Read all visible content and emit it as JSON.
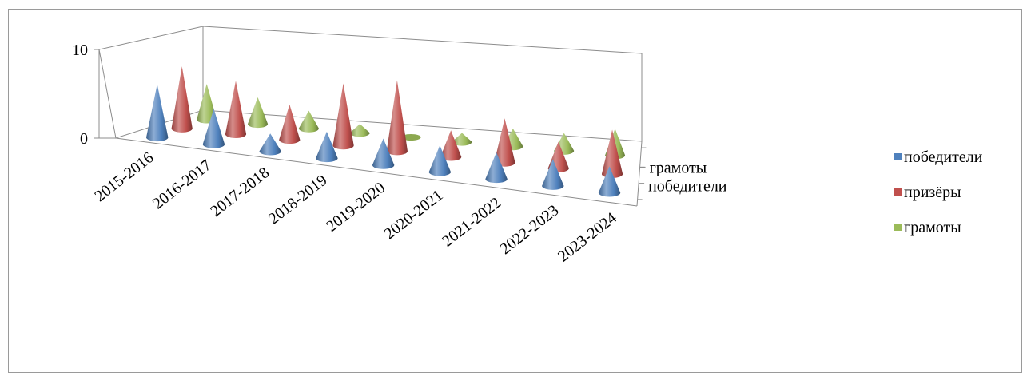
{
  "chart_data": {
    "type": "bar",
    "shape": "cone-3d",
    "categories": [
      "2015-2016",
      "2016-2017",
      "2017-2018",
      "2018-2019",
      "2019-2020",
      "2020-2021",
      "2021-2022",
      "2022-2023",
      "2023-2024"
    ],
    "series": [
      {
        "name": "победители",
        "values": [
          6,
          4,
          2,
          3,
          3,
          3,
          3,
          3,
          3
        ],
        "color": "#4f81bd"
      },
      {
        "name": "призёры",
        "values": [
          7,
          6,
          4,
          7,
          8,
          3,
          5,
          3,
          5
        ],
        "color": "#c0504d"
      },
      {
        "name": "грамоты",
        "values": [
          4,
          3,
          2,
          1,
          0,
          1,
          2,
          2,
          3
        ],
        "color": "#9bbb59"
      }
    ],
    "z_axis_labels": [
      "грамоты",
      "победители"
    ],
    "y_ticks": [
      0,
      10
    ],
    "ylim": [
      0,
      10
    ],
    "legend_position": "right",
    "grid": false
  }
}
